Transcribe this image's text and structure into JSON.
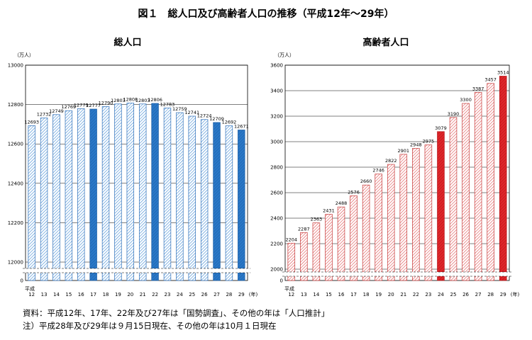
{
  "figure_title": "図１　総人口及び高齢者人口の推移（平成12年～29年）",
  "x_prefix": "平成",
  "x_suffix": "(年)",
  "notes": {
    "source": "資料：平成12年、17年、22年及び27年は「国勢調査」、その他の年は「人口推計」",
    "note": "注）平成28年及び29年は９月15日現在、その他の年は10月１日現在"
  },
  "colors": {
    "left_hatch": "#4a90d6",
    "left_solid": "#2f7fd0",
    "right_hatch": "#e05a5a",
    "right_solid": "#e0262a"
  },
  "chart_data": [
    {
      "type": "bar",
      "title": "総人口",
      "ylabel": "（万人）",
      "categories": [
        "12",
        "13",
        "14",
        "15",
        "16",
        "17",
        "18",
        "19",
        "20",
        "21",
        "22",
        "23",
        "24",
        "25",
        "26",
        "27",
        "28",
        "29"
      ],
      "values": [
        12693,
        12732,
        12749,
        12769,
        12779,
        12777,
        12790,
        12803,
        12808,
        12803,
        12806,
        12783,
        12759,
        12741,
        12724,
        12709,
        12692,
        12671
      ],
      "value_labels": [
        "12693",
        "12732",
        "12749",
        "12769",
        "12779",
        "12777",
        "12790",
        "12803",
        "12808",
        "12803",
        "12806",
        "12783",
        "12759",
        "12741",
        "12724",
        "12709",
        "12692",
        "12671"
      ],
      "highlight": [
        "17",
        "22",
        "27",
        "29"
      ],
      "ylim": [
        11800,
        13000
      ],
      "yticks": [
        12000,
        12200,
        12400,
        12600,
        12800,
        13000
      ],
      "axis_break": true,
      "grid": true
    },
    {
      "type": "bar",
      "title": "高齢者人口",
      "ylabel": "（万人）",
      "categories": [
        "12",
        "13",
        "14",
        "15",
        "16",
        "17",
        "18",
        "19",
        "20",
        "21",
        "22",
        "23",
        "24",
        "25",
        "26",
        "27",
        "28",
        "29"
      ],
      "values": [
        2204,
        2287,
        2363,
        2431,
        2488,
        2576,
        2660,
        2746,
        2822,
        2901,
        2948,
        2975,
        3079,
        3190,
        3300,
        3387,
        3457,
        3514
      ],
      "value_labels": [
        "2204",
        "2287",
        "2363",
        "2431",
        "2488",
        "2576",
        "2660",
        "2746",
        "2822",
        "2901",
        "2948",
        "2975",
        "3079",
        "3190",
        "3300",
        "3387",
        "3457",
        "3514"
      ],
      "highlight": [
        "24",
        "29"
      ],
      "ylim": [
        1800,
        3600
      ],
      "yticks": [
        2000,
        2200,
        2400,
        2600,
        2800,
        3000,
        3200,
        3400,
        3600
      ],
      "axis_break": true,
      "grid": true
    }
  ]
}
